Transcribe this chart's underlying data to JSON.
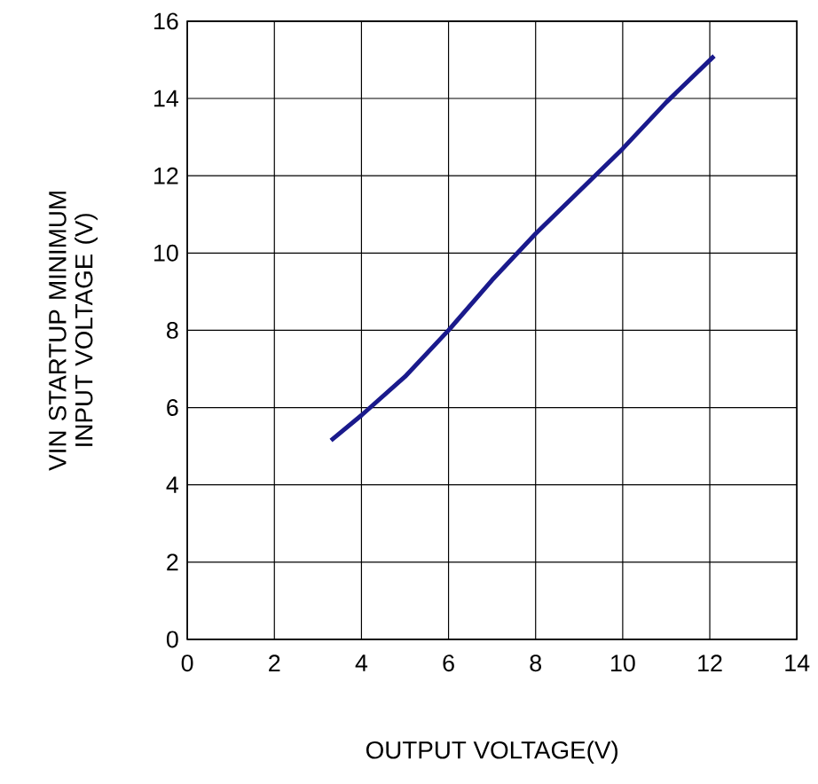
{
  "chart_data": {
    "type": "line",
    "xlabel": "OUTPUT VOLTAGE(V)",
    "ylabel": "VIN STARTUP MINIMUM INPUT VOLTAGE (V)",
    "x": [
      3.3,
      4,
      5,
      6,
      7,
      8,
      9,
      10,
      11,
      12.1
    ],
    "series": [
      {
        "color": "#1a1a8c",
        "values": [
          5.15,
          5.8,
          6.8,
          8.0,
          9.3,
          10.5,
          11.6,
          12.7,
          13.9,
          15.1
        ]
      }
    ],
    "xlim": [
      0,
      14
    ],
    "xticks": [
      0,
      2,
      4,
      6,
      8,
      10,
      12,
      14
    ],
    "ylim": [
      0,
      16
    ],
    "yticks": [
      0,
      2,
      4,
      6,
      8,
      10,
      12,
      14,
      16
    ],
    "grid": true,
    "marker": "none",
    "line_style": "solid"
  }
}
